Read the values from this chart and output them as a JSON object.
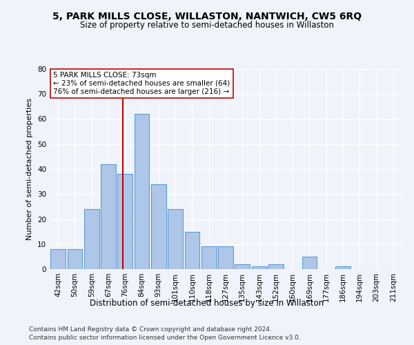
{
  "title": "5, PARK MILLS CLOSE, WILLASTON, NANTWICH, CW5 6RQ",
  "subtitle": "Size of property relative to semi-detached houses in Willaston",
  "xlabel": "Distribution of semi-detached houses by size in Willaston",
  "ylabel": "Number of semi-detached properties",
  "categories": [
    "42sqm",
    "50sqm",
    "59sqm",
    "67sqm",
    "76sqm",
    "84sqm",
    "93sqm",
    "101sqm",
    "110sqm",
    "118sqm",
    "127sqm",
    "135sqm",
    "143sqm",
    "152sqm",
    "160sqm",
    "169sqm",
    "177sqm",
    "186sqm",
    "194sqm",
    "203sqm",
    "211sqm"
  ],
  "values": [
    8,
    8,
    24,
    42,
    38,
    62,
    34,
    24,
    15,
    9,
    9,
    2,
    1,
    2,
    0,
    5,
    0,
    1,
    0,
    0,
    0
  ],
  "bar_color": "#aec6e8",
  "bar_edge_color": "#5b9bd5",
  "vline_x": 3.88,
  "vline_color": "#c00000",
  "annotation_text": "5 PARK MILLS CLOSE: 73sqm\n← 23% of semi-detached houses are smaller (64)\n76% of semi-detached houses are larger (216) →",
  "annotation_box_color": "white",
  "annotation_box_edge_color": "#c00000",
  "ylim": [
    0,
    80
  ],
  "yticks": [
    0,
    10,
    20,
    30,
    40,
    50,
    60,
    70,
    80
  ],
  "footer_line1": "Contains HM Land Registry data © Crown copyright and database right 2024.",
  "footer_line2": "Contains public sector information licensed under the Open Government Licence v3.0.",
  "background_color": "#f0f4fa",
  "grid_color": "#ffffff",
  "title_fontsize": 10,
  "subtitle_fontsize": 8.5,
  "ylabel_fontsize": 8,
  "xlabel_fontsize": 8.5,
  "tick_fontsize": 7.5,
  "footer_fontsize": 6.5
}
